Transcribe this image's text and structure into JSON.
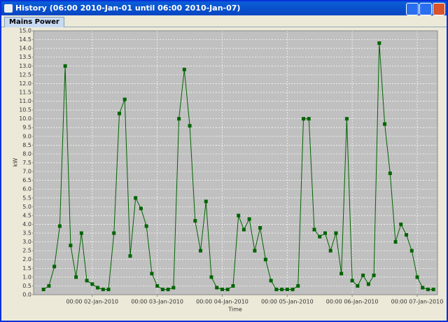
{
  "window_title": "History (06:00 2010-Jan-01 until 06:00 2010-Jan-07)",
  "tab": "Mains Power",
  "chart_data": {
    "type": "line",
    "x_label": "Time",
    "y_label": "kW",
    "x": [
      "2010-01-01 06:00",
      "2010-01-01 08:00",
      "2010-01-01 10:00",
      "2010-01-01 12:00",
      "2010-01-01 14:00",
      "2010-01-01 16:00",
      "2010-01-01 18:00",
      "2010-01-01 20:00",
      "2010-01-01 22:00",
      "2010-01-02 00:00",
      "2010-01-02 02:00",
      "2010-01-02 04:00",
      "2010-01-02 06:00",
      "2010-01-02 08:00",
      "2010-01-02 10:00",
      "2010-01-02 12:00",
      "2010-01-02 14:00",
      "2010-01-02 16:00",
      "2010-01-02 18:00",
      "2010-01-02 20:00",
      "2010-01-02 22:00",
      "2010-01-03 00:00",
      "2010-01-03 02:00",
      "2010-01-03 04:00",
      "2010-01-03 06:00",
      "2010-01-03 08:00",
      "2010-01-03 10:00",
      "2010-01-03 12:00",
      "2010-01-03 14:00",
      "2010-01-03 16:00",
      "2010-01-03 18:00",
      "2010-01-03 20:00",
      "2010-01-03 22:00",
      "2010-01-04 00:00",
      "2010-01-04 02:00",
      "2010-01-04 04:00",
      "2010-01-04 06:00",
      "2010-01-04 08:00",
      "2010-01-04 10:00",
      "2010-01-04 12:00",
      "2010-01-04 14:00",
      "2010-01-04 16:00",
      "2010-01-04 18:00",
      "2010-01-04 20:00",
      "2010-01-04 22:00",
      "2010-01-05 00:00",
      "2010-01-05 02:00",
      "2010-01-05 04:00",
      "2010-01-05 06:00",
      "2010-01-05 08:00",
      "2010-01-05 10:00",
      "2010-01-05 12:00",
      "2010-01-05 14:00",
      "2010-01-05 16:00",
      "2010-01-05 18:00",
      "2010-01-05 20:00",
      "2010-01-05 22:00",
      "2010-01-06 00:00",
      "2010-01-06 02:00",
      "2010-01-06 04:00",
      "2010-01-06 06:00",
      "2010-01-06 08:00",
      "2010-01-06 10:00",
      "2010-01-06 12:00",
      "2010-01-06 14:00",
      "2010-01-06 16:00",
      "2010-01-06 18:00",
      "2010-01-06 20:00",
      "2010-01-06 22:00",
      "2010-01-07 00:00",
      "2010-01-07 02:00",
      "2010-01-07 04:00",
      "2010-01-07 06:00"
    ],
    "values": [
      0.3,
      0.5,
      1.6,
      3.9,
      13.0,
      2.8,
      1.0,
      3.5,
      0.8,
      0.6,
      0.4,
      0.3,
      0.3,
      3.5,
      10.3,
      11.1,
      2.2,
      5.5,
      4.9,
      3.9,
      1.2,
      0.5,
      0.3,
      0.3,
      0.4,
      10.0,
      12.8,
      9.6,
      4.2,
      2.5,
      5.3,
      1.0,
      0.4,
      0.3,
      0.3,
      0.5,
      4.5,
      3.7,
      4.3,
      2.5,
      3.8,
      2.0,
      0.8,
      0.3,
      0.3,
      0.3,
      0.3,
      0.5,
      10.0,
      10.0,
      3.7,
      3.3,
      3.5,
      2.5,
      3.5,
      1.2,
      10.0,
      0.8,
      0.5,
      1.1,
      0.6,
      1.1,
      14.3,
      9.7,
      6.9,
      3.0,
      4.0,
      3.4,
      2.5,
      1.0,
      0.4,
      0.3,
      0.3
    ],
    "color": "#006400",
    "xlim": [
      "2010-01-01 02:20",
      "2010-01-07 07:30"
    ],
    "xticks": [
      {
        "value": "2010-01-02 00:00",
        "label": "00:00 02-Jan-2010"
      },
      {
        "value": "2010-01-03 00:00",
        "label": "00:00 03-Jan-2010"
      },
      {
        "value": "2010-01-04 00:00",
        "label": "00:00 04-Jan-2010"
      },
      {
        "value": "2010-01-05 00:00",
        "label": "00:00 05-Jan-2010"
      },
      {
        "value": "2010-01-06 00:00",
        "label": "00:00 06-Jan-2010"
      },
      {
        "value": "2010-01-07 00:00",
        "label": "00:00 07-Jan-2010"
      }
    ],
    "ylim": [
      0,
      15
    ],
    "yticks": [
      {
        "value": 0,
        "label": "0.0"
      },
      0.5,
      {
        "value": 1,
        "label": "1.0"
      },
      1.5,
      {
        "value": 2,
        "label": "2.0"
      },
      2.5,
      {
        "value": 3,
        "label": "3.0"
      },
      3.5,
      {
        "value": 4,
        "label": "4.0"
      },
      4.5,
      {
        "value": 5,
        "label": "5.0"
      },
      5.5,
      {
        "value": 6,
        "label": "6.0"
      },
      6.5,
      {
        "value": 7,
        "label": "7.0"
      },
      7.5,
      {
        "value": 8,
        "label": "8.0"
      },
      8.5,
      {
        "value": 9,
        "label": "9.0"
      },
      9.5,
      {
        "value": 10,
        "label": "10.0"
      },
      10.5,
      {
        "value": 11,
        "label": "11.0"
      },
      11.5,
      {
        "value": 12,
        "label": "12.0"
      },
      12.5,
      {
        "value": 13,
        "label": "13.0"
      },
      13.5,
      {
        "value": 14,
        "label": "14.0"
      },
      14.5,
      {
        "value": 15,
        "label": "15.0"
      }
    ],
    "grid": true
  }
}
